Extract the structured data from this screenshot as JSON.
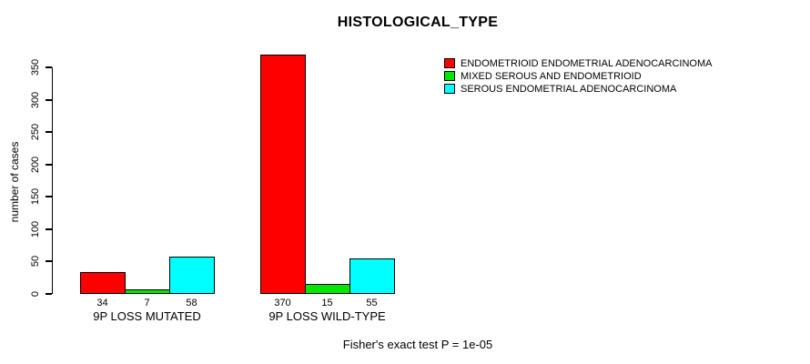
{
  "chart_data": {
    "type": "bar",
    "title": "HISTOLOGICAL_TYPE",
    "xlabel": "",
    "ylabel": "number of cases",
    "ylim": [
      0,
      350
    ],
    "yticks": [
      0,
      50,
      100,
      150,
      200,
      250,
      300,
      350
    ],
    "grid": false,
    "legend_position": "top-right",
    "categories": [
      "9P LOSS MUTATED",
      "9P LOSS WILD-TYPE"
    ],
    "series": [
      {
        "name": "ENDOMETRIOID ENDOMETRIAL ADENOCARCINOMA",
        "color": "#FF0000",
        "values": [
          34,
          370
        ]
      },
      {
        "name": "MIXED SEROUS AND ENDOMETRIOID",
        "color": "#00E800",
        "values": [
          7,
          15
        ]
      },
      {
        "name": "SEROUS ENDOMETRIAL ADENOCARCINOMA",
        "color": "#00FFFF",
        "values": [
          58,
          55
        ]
      }
    ],
    "bar_value_labels": [
      [
        34,
        7,
        58
      ],
      [
        370,
        15,
        55
      ]
    ],
    "annotation": "Fisher's exact test P = 1e-05"
  }
}
